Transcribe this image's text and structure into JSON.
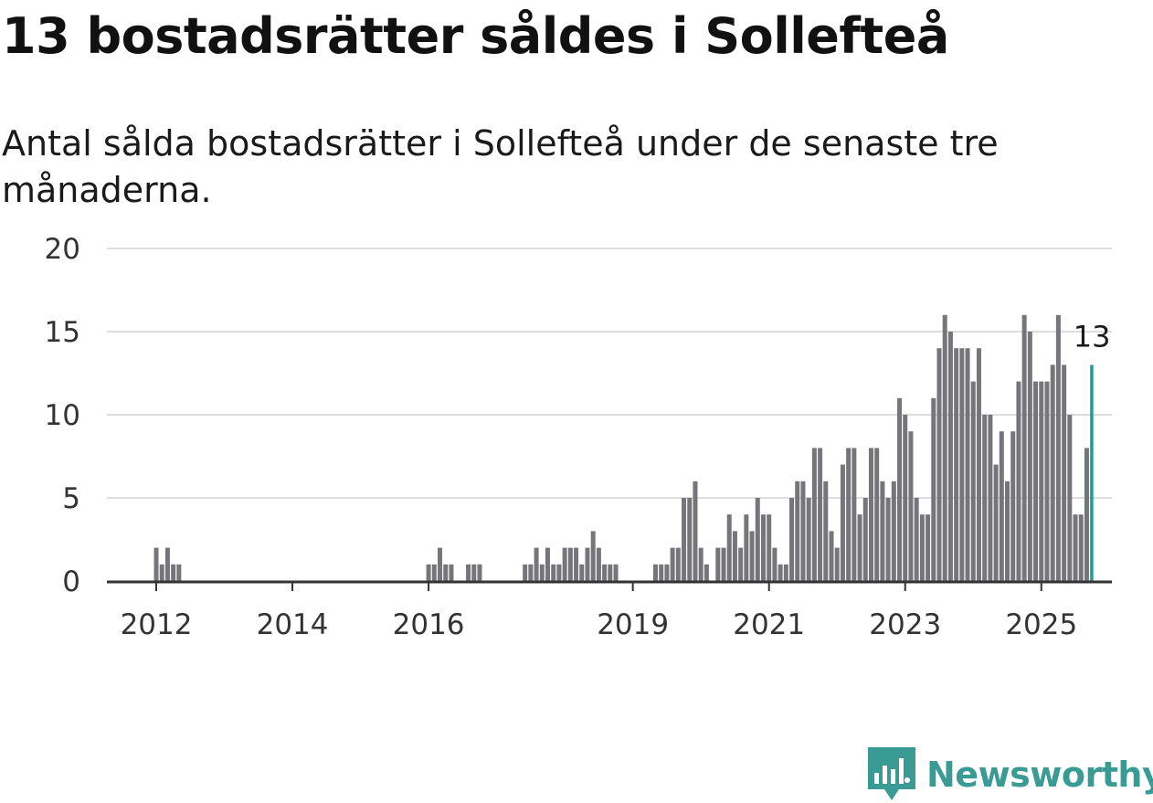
{
  "colors": {
    "bar": "#76767a",
    "highlight": "#1a9e99",
    "grid": "#dddddd",
    "axis": "#333333",
    "brand": "#3a9b95"
  },
  "brand": {
    "name": "Newsworthy",
    "icon": "bar-chart-speech-bubble-icon"
  },
  "chart_data": {
    "type": "bar",
    "title": "13 bostadsrätter såldes i Sollefteå",
    "subtitle": "Antal sålda bostadsrätter i Sollefteå under de senaste tre månaderna.",
    "xlabel": "",
    "ylabel": "",
    "ylim": [
      0,
      20
    ],
    "yticks": [
      0,
      5,
      10,
      15,
      20
    ],
    "xticks": [
      "2012",
      "2014",
      "2016",
      "2019",
      "2021",
      "2023",
      "2025"
    ],
    "grid": true,
    "period": "monthly",
    "start_month": "2011-01",
    "last_label": "13",
    "values": [
      0,
      0,
      0,
      0,
      0,
      0,
      0,
      0,
      0,
      0,
      0,
      0,
      2,
      1,
      2,
      1,
      1,
      0,
      0,
      0,
      0,
      0,
      0,
      0,
      0,
      0,
      0,
      0,
      0,
      0,
      0,
      0,
      0,
      0,
      0,
      0,
      0,
      0,
      0,
      0,
      0,
      0,
      0,
      0,
      0,
      0,
      0,
      0,
      0,
      0,
      0,
      0,
      0,
      0,
      0,
      0,
      0,
      0,
      0,
      0,
      1,
      1,
      2,
      1,
      1,
      0,
      0,
      1,
      1,
      1,
      0,
      0,
      0,
      0,
      0,
      0,
      0,
      1,
      1,
      2,
      1,
      2,
      1,
      1,
      2,
      2,
      2,
      1,
      2,
      3,
      2,
      1,
      1,
      1,
      0,
      0,
      0,
      0,
      0,
      0,
      1,
      1,
      1,
      2,
      2,
      5,
      5,
      6,
      2,
      1,
      0,
      2,
      2,
      4,
      3,
      2,
      4,
      3,
      5,
      4,
      4,
      2,
      1,
      1,
      5,
      6,
      6,
      5,
      8,
      8,
      6,
      3,
      2,
      7,
      8,
      8,
      4,
      5,
      8,
      8,
      6,
      5,
      6,
      11,
      10,
      9,
      5,
      4,
      4,
      11,
      14,
      16,
      15,
      14,
      14,
      14,
      12,
      14,
      10,
      10,
      7,
      9,
      6,
      9,
      12,
      16,
      15,
      12,
      12,
      12,
      13,
      16,
      13,
      10,
      4,
      4,
      8,
      13
    ]
  }
}
